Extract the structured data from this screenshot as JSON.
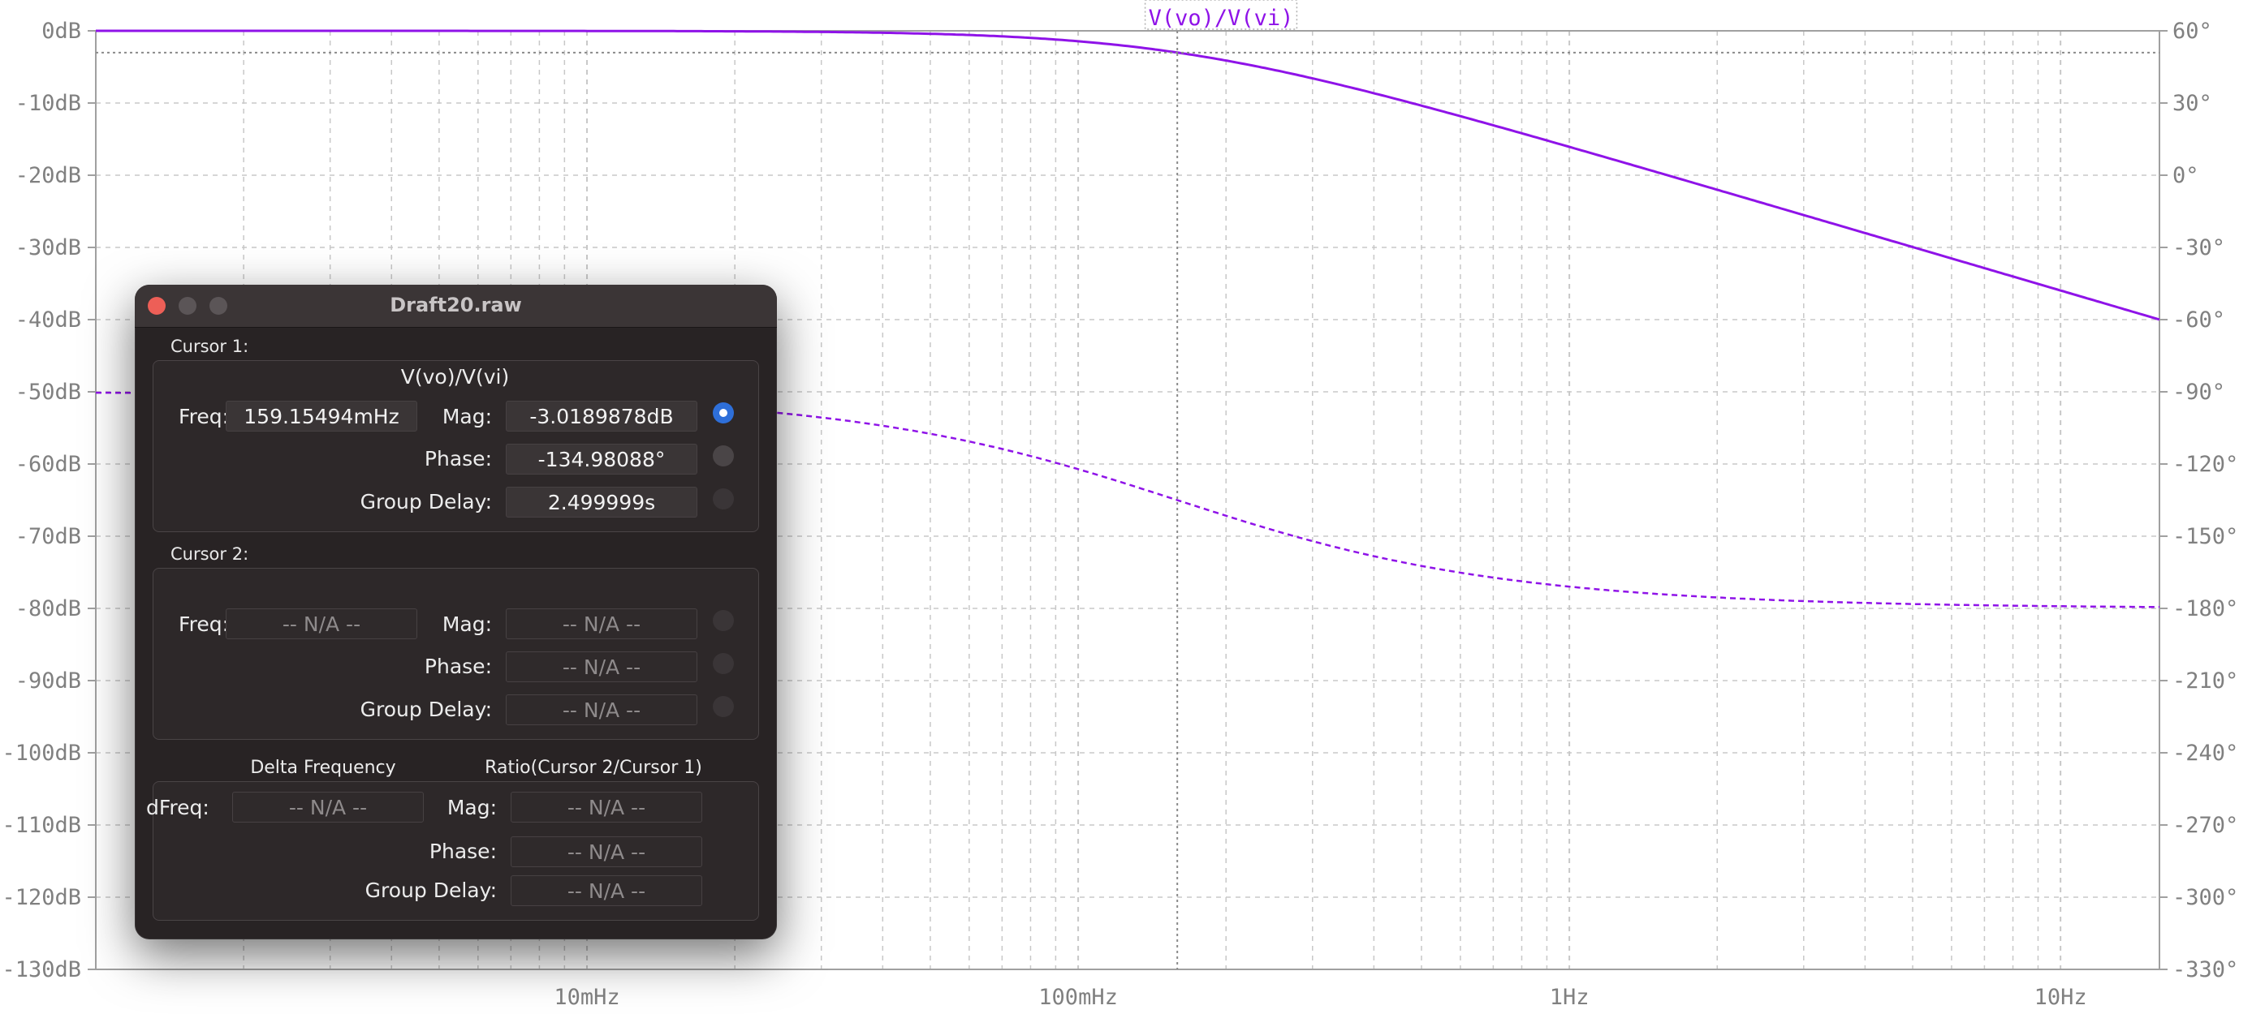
{
  "plot": {
    "trace_name": "V(vo)/V(vi)",
    "left_axis": {
      "unit": "dB",
      "ticks": [
        "0dB",
        "-10dB",
        "-20dB",
        "-30dB",
        "-40dB",
        "-50dB",
        "-60dB",
        "-70dB",
        "-80dB",
        "-90dB",
        "-100dB",
        "-110dB",
        "-120dB",
        "-130dB"
      ],
      "values": [
        0,
        -10,
        -20,
        -30,
        -40,
        -50,
        -60,
        -70,
        -80,
        -90,
        -100,
        -110,
        -120,
        -130
      ]
    },
    "right_axis": {
      "unit": "°",
      "ticks": [
        "60°",
        "30°",
        "0°",
        "-30°",
        "-60°",
        "-90°",
        "-120°",
        "-150°",
        "-180°",
        "-210°",
        "-240°",
        "-270°",
        "-300°",
        "-330°"
      ],
      "values": [
        60,
        30,
        0,
        -30,
        -60,
        -90,
        -120,
        -150,
        -180,
        -210,
        -240,
        -270,
        -300,
        -330
      ]
    },
    "x_axis": {
      "scale": "log",
      "range_hz": [
        0.001,
        15.9
      ],
      "ticks": [
        {
          "label": "10mHz",
          "value_hz": 0.01
        },
        {
          "label": "100mHz",
          "value_hz": 0.1
        },
        {
          "label": "1Hz",
          "value_hz": 1
        },
        {
          "label": "10Hz",
          "value_hz": 10
        }
      ]
    },
    "cursor_freq_hz": 0.15915494,
    "cutoff_db": -3.0189878,
    "colors": {
      "trace": "#8f13e8",
      "grid": "#c8c8c8",
      "axis_text": "#808080",
      "frame": "#a0a0a0"
    }
  },
  "window": {
    "title": "Draft20.raw",
    "cursor1": {
      "label": "Cursor 1:",
      "trace": "V(vo)/V(vi)",
      "freq_label": "Freq:",
      "freq_value": "159.15494mHz",
      "mag_label": "Mag:",
      "mag_value": "-3.0189878dB",
      "phase_label": "Phase:",
      "phase_value": "-134.98088°",
      "gd_label": "Group Delay:",
      "gd_value": "2.499999s"
    },
    "cursor2": {
      "label": "Cursor 2:",
      "freq_label": "Freq:",
      "freq_value": "-- N/A --",
      "mag_label": "Mag:",
      "mag_value": "-- N/A --",
      "phase_label": "Phase:",
      "phase_value": "-- N/A --",
      "gd_label": "Group Delay:",
      "gd_value": "-- N/A --"
    },
    "delta": {
      "delta_header": "Delta Frequency",
      "ratio_header": "Ratio(Cursor 2/Cursor 1)",
      "dfreq_label": "dFreq:",
      "dfreq_value": "-- N/A --",
      "mag_label": "Mag:",
      "mag_value": "-- N/A --",
      "phase_label": "Phase:",
      "phase_value": "-- N/A --",
      "gd_label": "Group Delay:",
      "gd_value": "-- N/A --"
    }
  }
}
